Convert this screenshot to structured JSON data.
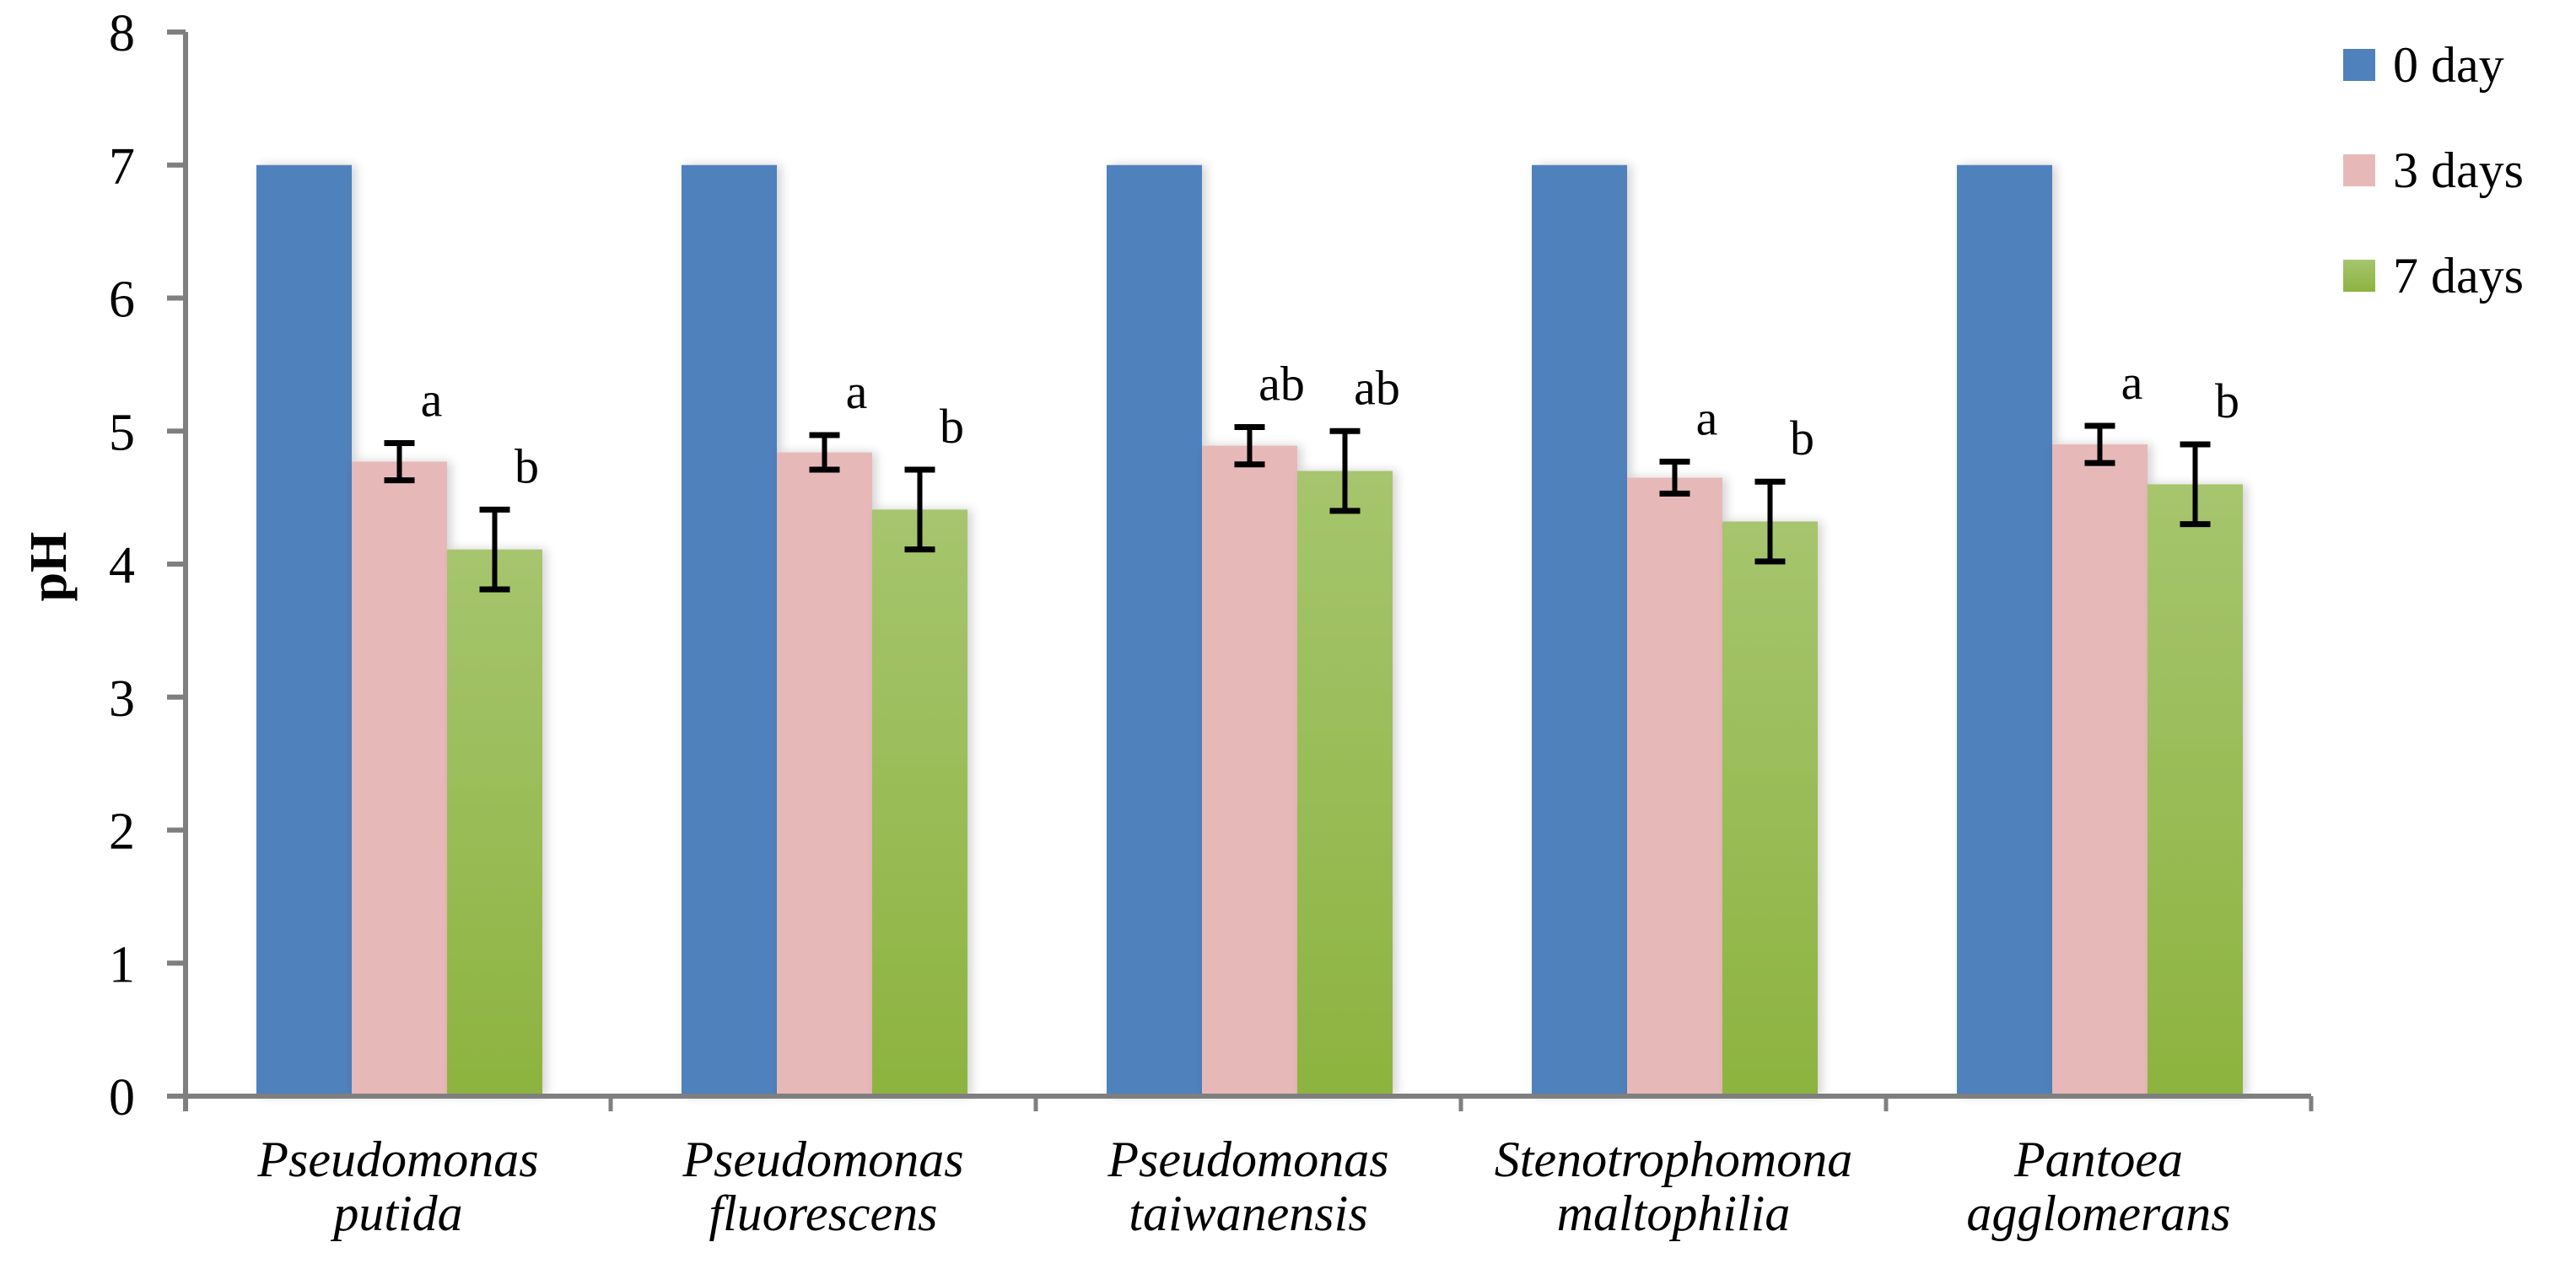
{
  "chart_data": {
    "type": "bar",
    "title": "",
    "xlabel": "",
    "ylabel": "pH",
    "ylim": [
      0,
      8
    ],
    "yticks": [
      0,
      1,
      2,
      3,
      4,
      5,
      6,
      7,
      8
    ],
    "grid": false,
    "legend_position": "right-top",
    "categories": [
      [
        "Pseudomonas",
        "putida"
      ],
      [
        "Pseudomonas",
        "fluorescens"
      ],
      [
        "Pseudomonas",
        "taiwanensis"
      ],
      [
        "Stenotrophomona",
        "maltophilia"
      ],
      [
        "Pantoea",
        "agglomerans"
      ]
    ],
    "series": [
      {
        "name": "0 day",
        "color": "#4f81bd",
        "values": [
          7.0,
          7.0,
          7.0,
          7.0,
          7.0
        ],
        "errors": [
          0,
          0,
          0,
          0,
          0
        ],
        "letters": [
          "",
          "",
          "",
          "",
          ""
        ]
      },
      {
        "name": "3 days",
        "color": "#e6b9b8",
        "values": [
          4.77,
          4.84,
          4.89,
          4.65,
          4.9
        ],
        "errors": [
          0.14,
          0.13,
          0.14,
          0.12,
          0.14
        ],
        "letters": [
          "a",
          "a",
          "ab",
          "a",
          "a"
        ]
      },
      {
        "name": "7 days",
        "color": "#9bbb59",
        "values": [
          4.11,
          4.41,
          4.7,
          4.32,
          4.6
        ],
        "errors": [
          0.3,
          0.3,
          0.3,
          0.3,
          0.3
        ],
        "letters": [
          "b",
          "b",
          "ab",
          "b",
          "b"
        ]
      }
    ]
  },
  "legend": {
    "items": [
      {
        "label": "0 day",
        "color": "#4f81bd"
      },
      {
        "label": "3 days",
        "color": "#e6b9b8"
      },
      {
        "label": "7 days",
        "color": "#9bbb59"
      }
    ]
  },
  "axis": {
    "y_label": "pH",
    "line_color": "#7f7f7f"
  }
}
